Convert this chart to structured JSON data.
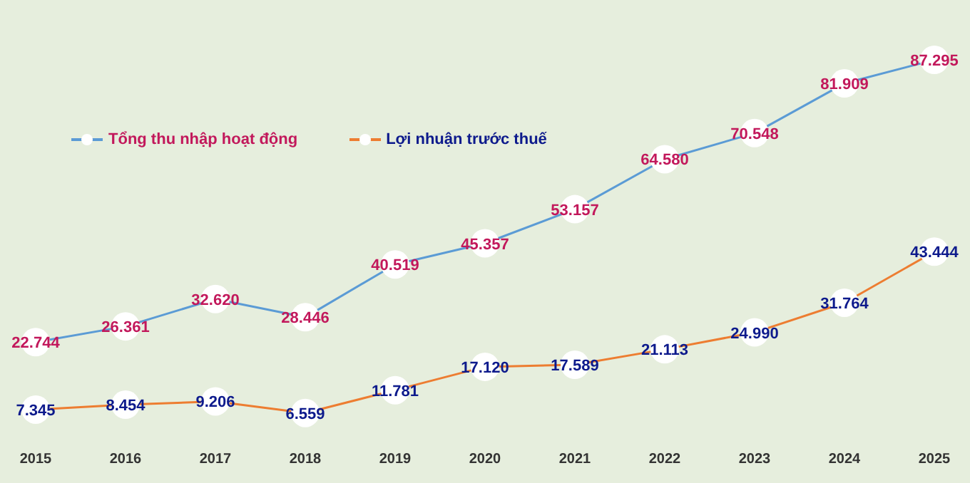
{
  "chart_data": {
    "type": "line",
    "categories": [
      "2015",
      "2016",
      "2017",
      "2018",
      "2019",
      "2020",
      "2021",
      "2022",
      "2023",
      "2024",
      "2025"
    ],
    "series": [
      {
        "name": "Tổng thu nhập hoạt động",
        "color": "#5b9bd5",
        "values": [
          22744,
          26361,
          32620,
          28446,
          40519,
          45357,
          53157,
          64580,
          70548,
          81909,
          87295
        ],
        "value_labels": [
          "22.744",
          "26.361",
          "32.620",
          "28.446",
          "40.519",
          "45.357",
          "53.157",
          "64.580",
          "70.548",
          "81.909",
          "87.295"
        ]
      },
      {
        "name": "Lợi nhuận trước thuế",
        "color": "#ed7d31",
        "values": [
          7345,
          8454,
          9206,
          6559,
          11781,
          17120,
          17589,
          21113,
          24990,
          31764,
          43444
        ],
        "value_labels": [
          "7.345",
          "8.454",
          "9.206",
          "6.559",
          "11.781",
          "17.120",
          "17.589",
          "21.113",
          "24.990",
          "31.764",
          "43.444"
        ]
      }
    ],
    "legend": "top left",
    "marker": "circle",
    "line_style": "solid",
    "grid": false
  }
}
